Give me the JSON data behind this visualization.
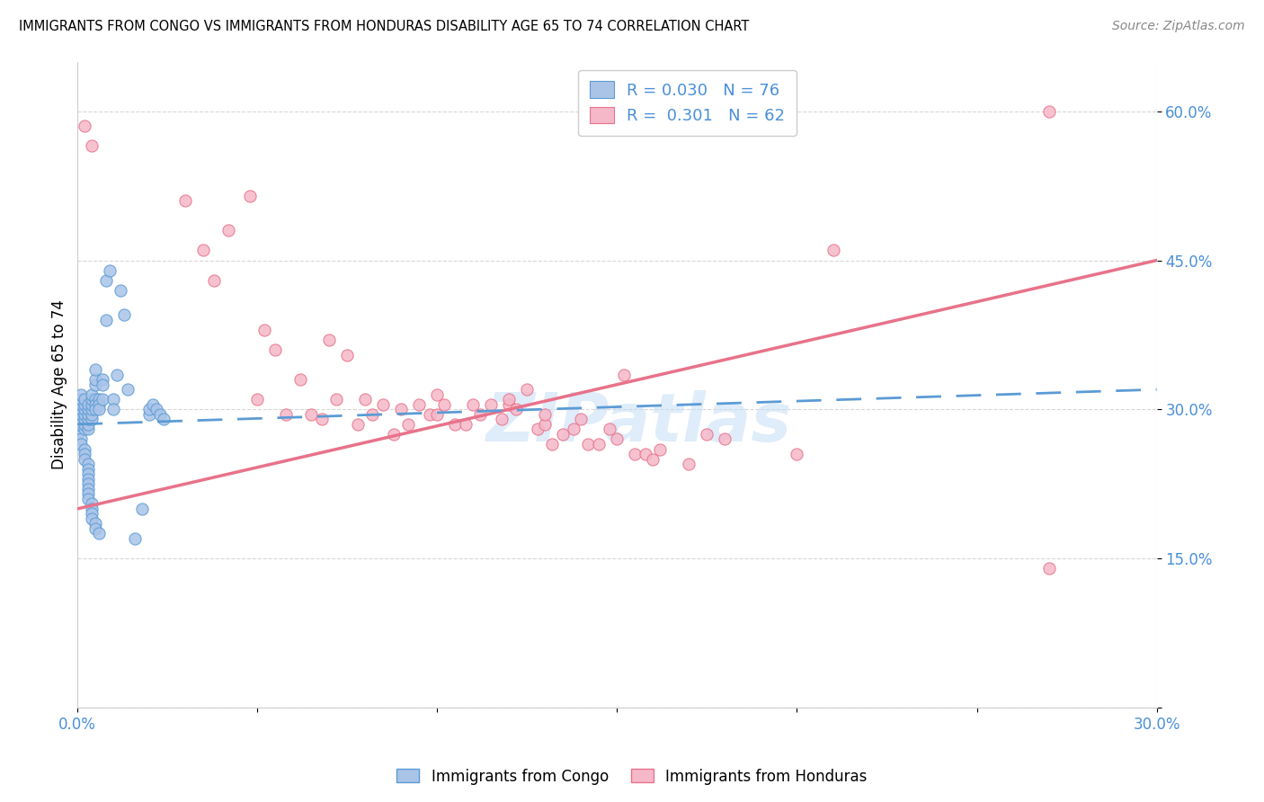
{
  "title": "IMMIGRANTS FROM CONGO VS IMMIGRANTS FROM HONDURAS DISABILITY AGE 65 TO 74 CORRELATION CHART",
  "source": "Source: ZipAtlas.com",
  "ylabel": "Disability Age 65 to 74",
  "xlim": [
    0.0,
    0.3
  ],
  "ylim": [
    0.0,
    0.65
  ],
  "congo_color": "#aac4e8",
  "congo_edge_color": "#5b9bd5",
  "honduras_color": "#f5b8c8",
  "honduras_edge_color": "#e8728a",
  "trendline_congo_color": "#5b9bd5",
  "trendline_honduras_color": "#e8728a",
  "legend_R_congo": "0.030",
  "legend_N_congo": "76",
  "legend_R_honduras": "0.301",
  "legend_N_honduras": "62",
  "watermark": "ZIPatlas",
  "ytick_color": "#4a90d9",
  "xtick_color": "#4a90d9",
  "congo_x": [
    0.0,
    0.0,
    0.001,
    0.001,
    0.001,
    0.001,
    0.001,
    0.001,
    0.001,
    0.001,
    0.002,
    0.002,
    0.002,
    0.002,
    0.002,
    0.002,
    0.002,
    0.002,
    0.002,
    0.002,
    0.003,
    0.003,
    0.003,
    0.003,
    0.003,
    0.003,
    0.003,
    0.003,
    0.003,
    0.003,
    0.003,
    0.003,
    0.003,
    0.003,
    0.004,
    0.004,
    0.004,
    0.004,
    0.004,
    0.004,
    0.004,
    0.004,
    0.004,
    0.004,
    0.005,
    0.005,
    0.005,
    0.005,
    0.005,
    0.005,
    0.005,
    0.005,
    0.006,
    0.006,
    0.006,
    0.006,
    0.007,
    0.007,
    0.007,
    0.008,
    0.008,
    0.009,
    0.01,
    0.01,
    0.011,
    0.012,
    0.013,
    0.014,
    0.016,
    0.018,
    0.02,
    0.02,
    0.021,
    0.022,
    0.023,
    0.024
  ],
  "congo_y": [
    0.275,
    0.285,
    0.29,
    0.295,
    0.3,
    0.305,
    0.31,
    0.315,
    0.27,
    0.265,
    0.28,
    0.285,
    0.29,
    0.295,
    0.3,
    0.305,
    0.31,
    0.26,
    0.255,
    0.25,
    0.28,
    0.285,
    0.29,
    0.295,
    0.3,
    0.305,
    0.245,
    0.24,
    0.235,
    0.23,
    0.225,
    0.22,
    0.215,
    0.21,
    0.29,
    0.295,
    0.3,
    0.305,
    0.31,
    0.315,
    0.205,
    0.2,
    0.195,
    0.19,
    0.325,
    0.33,
    0.34,
    0.31,
    0.305,
    0.3,
    0.185,
    0.18,
    0.31,
    0.305,
    0.3,
    0.175,
    0.33,
    0.325,
    0.31,
    0.39,
    0.43,
    0.44,
    0.31,
    0.3,
    0.335,
    0.42,
    0.395,
    0.32,
    0.17,
    0.2,
    0.295,
    0.3,
    0.305,
    0.3,
    0.295,
    0.29
  ],
  "honduras_x": [
    0.002,
    0.004,
    0.03,
    0.035,
    0.038,
    0.042,
    0.048,
    0.05,
    0.052,
    0.055,
    0.058,
    0.062,
    0.065,
    0.068,
    0.07,
    0.072,
    0.075,
    0.078,
    0.08,
    0.082,
    0.085,
    0.088,
    0.09,
    0.092,
    0.095,
    0.098,
    0.1,
    0.1,
    0.102,
    0.105,
    0.108,
    0.11,
    0.112,
    0.115,
    0.118,
    0.12,
    0.12,
    0.122,
    0.125,
    0.128,
    0.13,
    0.13,
    0.132,
    0.135,
    0.138,
    0.14,
    0.142,
    0.145,
    0.148,
    0.15,
    0.152,
    0.155,
    0.158,
    0.16,
    0.162,
    0.17,
    0.175,
    0.18,
    0.2,
    0.21,
    0.27,
    0.27
  ],
  "honduras_y": [
    0.585,
    0.565,
    0.51,
    0.46,
    0.43,
    0.48,
    0.515,
    0.31,
    0.38,
    0.36,
    0.295,
    0.33,
    0.295,
    0.29,
    0.37,
    0.31,
    0.355,
    0.285,
    0.31,
    0.295,
    0.305,
    0.275,
    0.3,
    0.285,
    0.305,
    0.295,
    0.295,
    0.315,
    0.305,
    0.285,
    0.285,
    0.305,
    0.295,
    0.305,
    0.29,
    0.305,
    0.31,
    0.3,
    0.32,
    0.28,
    0.285,
    0.295,
    0.265,
    0.275,
    0.28,
    0.29,
    0.265,
    0.265,
    0.28,
    0.27,
    0.335,
    0.255,
    0.255,
    0.25,
    0.26,
    0.245,
    0.275,
    0.27,
    0.255,
    0.46,
    0.6,
    0.14
  ]
}
